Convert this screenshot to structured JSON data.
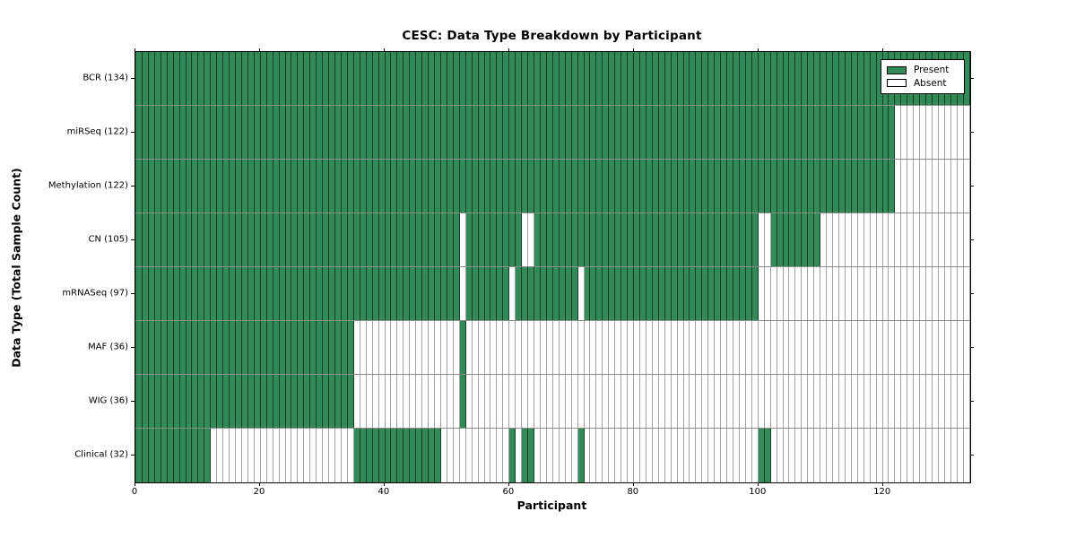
{
  "chart_data": {
    "type": "heatmap",
    "title": "CESC: Data Type Breakdown by Participant",
    "xlabel": "Participant",
    "ylabel": "Data Type (Total Sample Count)",
    "n_participants": 134,
    "xlim": [
      0,
      134
    ],
    "x_ticks": [
      0,
      20,
      40,
      60,
      80,
      100,
      120
    ],
    "grid": "per-cell outlines, row separator lines",
    "legend_position": "upper right",
    "legend": [
      {
        "label": "Present",
        "key": "present"
      },
      {
        "label": "Absent",
        "key": "absent"
      }
    ],
    "colors": {
      "present": "#318a57",
      "absent": "#ffffff",
      "cell_edge_on_green": "rgba(0,0,0,0.55)",
      "cell_edge_on_white": "rgba(90,90,90,0.55)",
      "frame": "#000000"
    },
    "rows": [
      {
        "name": "BCR",
        "label": "BCR (134)",
        "total": 134,
        "present_ranges": [
          [
            0,
            134
          ]
        ]
      },
      {
        "name": "miRSeq",
        "label": "miRSeq (122)",
        "total": 122,
        "present_ranges": [
          [
            0,
            122
          ]
        ]
      },
      {
        "name": "Methylation",
        "label": "Methylation (122)",
        "total": 122,
        "present_ranges": [
          [
            0,
            122
          ]
        ]
      },
      {
        "name": "CN",
        "label": "CN (105)",
        "total": 105,
        "present_ranges": [
          [
            0,
            52
          ],
          [
            53,
            62
          ],
          [
            64,
            100
          ],
          [
            102,
            110
          ]
        ]
      },
      {
        "name": "mRNASeq",
        "label": "mRNASeq (97)",
        "total": 97,
        "present_ranges": [
          [
            0,
            52
          ],
          [
            53,
            60
          ],
          [
            61,
            71
          ],
          [
            72,
            100
          ]
        ]
      },
      {
        "name": "MAF",
        "label": "MAF (36)",
        "total": 36,
        "present_ranges": [
          [
            0,
            35
          ],
          [
            52,
            53
          ]
        ]
      },
      {
        "name": "WIG",
        "label": "WIG (36)",
        "total": 36,
        "present_ranges": [
          [
            0,
            35
          ],
          [
            52,
            53
          ]
        ]
      },
      {
        "name": "Clinical",
        "label": "Clinical (32)",
        "total": 32,
        "present_ranges": [
          [
            0,
            12
          ],
          [
            35,
            49
          ],
          [
            60,
            61
          ],
          [
            62,
            64
          ],
          [
            71,
            72
          ],
          [
            100,
            102
          ]
        ]
      }
    ]
  }
}
